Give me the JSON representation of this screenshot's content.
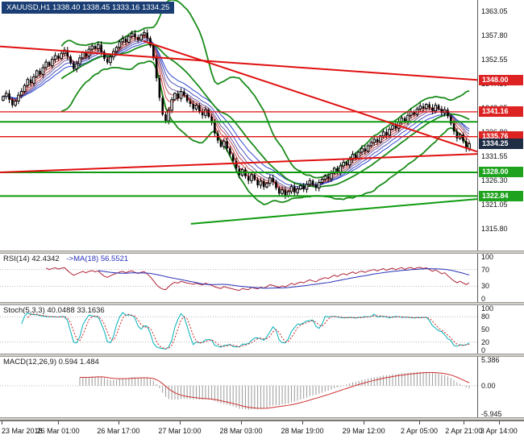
{
  "window": {
    "title": "XAUUSD,H1 1338.40 1338.45 1333.16 1334.25"
  },
  "colors": {
    "up_candle": "#ffffff",
    "down_candle": "#000000",
    "candle_border": "#000000",
    "bollinger": "#1a8c1a",
    "trend_red": "#e01010",
    "trend_green": "#0f9b0f",
    "ma_fan": [
      "#e02020",
      "#d04040",
      "#b05060",
      "#7060a0",
      "#4850c0",
      "#3048d0"
    ],
    "rsi_line": "#b02438",
    "rsi_ma_line": "#2830b8",
    "stoch_k": "#00b0b8",
    "stoch_d": "#d02020",
    "macd_hist": "#9a9a9a",
    "macd_signal": "#cc3030",
    "level_dotted": "#b8b8b8",
    "badge_red": "#dd2222",
    "badge_green": "#1fa31f",
    "badge_current": "#1f2d45",
    "title_bg": "#1b3f74"
  },
  "chart_data": {
    "type": "candlestick",
    "symbol": "XAUUSD",
    "timeframe": "H1",
    "quote": {
      "open": "1338.40",
      "high": "1338.45",
      "low": "1333.16",
      "close": "1334.25"
    },
    "y_range": [
      1311.0,
      1365.5
    ],
    "y_ticks": [
      1363.05,
      1357.8,
      1352.55,
      1347.3,
      1342.05,
      1336.8,
      1331.55,
      1326.3,
      1321.05,
      1315.8
    ],
    "closes": [
      1344.5,
      1345.2,
      1343.8,
      1342.6,
      1343.5,
      1344.8,
      1345.6,
      1346.9,
      1348.2,
      1347.4,
      1348.8,
      1350.1,
      1349.3,
      1350.8,
      1352.0,
      1351.2,
      1352.6,
      1353.4,
      1352.8,
      1353.9,
      1354.6,
      1353.2,
      1351.8,
      1350.5,
      1351.6,
      1352.9,
      1354.1,
      1353.3,
      1354.8,
      1355.5,
      1354.9,
      1355.8,
      1354.2,
      1352.7,
      1351.9,
      1353.1,
      1354.3,
      1355.2,
      1356.4,
      1357.1,
      1356.3,
      1357.6,
      1358.2,
      1357.4,
      1356.8,
      1357.9,
      1358.4,
      1357.2,
      1355.6,
      1352.8,
      1348.5,
      1344.2,
      1340.6,
      1339.2,
      1341.5,
      1343.8,
      1345.2,
      1344.1,
      1345.6,
      1344.8,
      1343.5,
      1342.9,
      1341.8,
      1342.6,
      1341.2,
      1340.4,
      1341.6,
      1340.1,
      1338.8,
      1336.5,
      1334.9,
      1333.6,
      1334.8,
      1333.2,
      1331.9,
      1330.5,
      1328.8,
      1327.4,
      1328.6,
      1327.1,
      1326.2,
      1327.5,
      1326.4,
      1325.2,
      1326.1,
      1324.8,
      1325.6,
      1326.8,
      1325.9,
      1324.6,
      1323.4,
      1324.2,
      1322.9,
      1323.8,
      1324.9,
      1323.6,
      1324.4,
      1325.1,
      1324.3,
      1325.4,
      1326.2,
      1325.3,
      1324.6,
      1325.8,
      1326.5,
      1327.2,
      1326.6,
      1327.8,
      1328.9,
      1328.1,
      1329.4,
      1330.2,
      1329.6,
      1330.8,
      1331.9,
      1331.1,
      1332.4,
      1333.2,
      1332.6,
      1333.8,
      1334.5,
      1335.2,
      1334.6,
      1335.9,
      1336.8,
      1336.1,
      1337.4,
      1338.2,
      1337.6,
      1338.9,
      1339.8,
      1339.1,
      1340.4,
      1341.2,
      1340.6,
      1341.8,
      1342.4,
      1341.9,
      1342.8,
      1342.1,
      1341.4,
      1342.6,
      1341.8,
      1340.9,
      1341.6,
      1340.2,
      1338.6,
      1336.9,
      1335.4,
      1336.2,
      1334.8,
      1333.2,
      1334.25
    ],
    "x_labels": [
      {
        "text": "23 Mar 2018",
        "pos": 0.003,
        "align": "left"
      },
      {
        "text": "26 Mar 01:00",
        "pos": 0.111,
        "align": "center"
      },
      {
        "text": "26 Mar 17:00",
        "pos": 0.226,
        "align": "center"
      },
      {
        "text": "27 Mar 10:00",
        "pos": 0.343,
        "align": "center"
      },
      {
        "text": "28 Mar 03:00",
        "pos": 0.46,
        "align": "center"
      },
      {
        "text": "28 Mar 19:00",
        "pos": 0.577,
        "align": "center"
      },
      {
        "text": "29 Mar 12:00",
        "pos": 0.694,
        "align": "center"
      },
      {
        "text": "2 Apr 05:00",
        "pos": 0.8,
        "align": "center"
      },
      {
        "text": "2 Apr 21:00",
        "pos": 0.885,
        "align": "center"
      },
      {
        "text": "3 Apr 14:00",
        "pos": 0.952,
        "align": "center"
      }
    ],
    "price_levels": [
      {
        "value": 1348.0,
        "label": "1348.00",
        "style": "red",
        "line": false
      },
      {
        "value": 1341.16,
        "label": "1341.16",
        "style": "red",
        "line": true
      },
      {
        "value": 1335.76,
        "label": "1335.76",
        "style": "red",
        "line": true
      },
      {
        "value": 1334.25,
        "label": "1334.25",
        "style": "current",
        "line": false
      },
      {
        "value": 1328.0,
        "label": "1328.00",
        "style": "green",
        "line": true
      },
      {
        "value": 1322.84,
        "label": "1322.84",
        "style": "green",
        "line": true
      }
    ],
    "extra_levels": [
      {
        "value": 1339.0,
        "color": "green",
        "width": 2
      }
    ],
    "trend_lines": [
      {
        "x1": 0.0,
        "p1": 1355.4,
        "x2": 1.0,
        "p2": 1348.1,
        "color": "red",
        "width": 2
      },
      {
        "x1": 0.3,
        "p1": 1356.6,
        "x2": 1.0,
        "p2": 1332.5,
        "color": "red",
        "width": 2
      },
      {
        "x1": 0.0,
        "p1": 1328.0,
        "x2": 1.0,
        "p2": 1332.0,
        "color": "red",
        "width": 2
      },
      {
        "x1": 0.4,
        "p1": 1316.8,
        "x2": 1.0,
        "p2": 1322.2,
        "color": "green",
        "width": 2
      }
    ],
    "indicators": {
      "rsi": {
        "label": "RSI(14) 42.4342",
        "ma_label": "->MA(18) 56.5521",
        "period": 14,
        "ma_period": 18,
        "levels": [
          30,
          70
        ],
        "axis_ticks": [
          "100",
          "70",
          "30",
          "0"
        ]
      },
      "stoch": {
        "label": "Stoch(5,3,3) 40.0488 33.1636",
        "period": 5,
        "slowing": 3,
        "d_period": 3,
        "levels": [
          20,
          80
        ],
        "axis_ticks": [
          "100",
          "80",
          "50",
          "20",
          "0"
        ]
      },
      "macd": {
        "label": "MACD(12,26,9) 0.594 1.484",
        "fast": 12,
        "slow": 26,
        "signal": 9,
        "range": [
          -5.945,
          5.386
        ],
        "axis_ticks": [
          "5.386",
          "0.00",
          "-5.945"
        ]
      }
    }
  }
}
